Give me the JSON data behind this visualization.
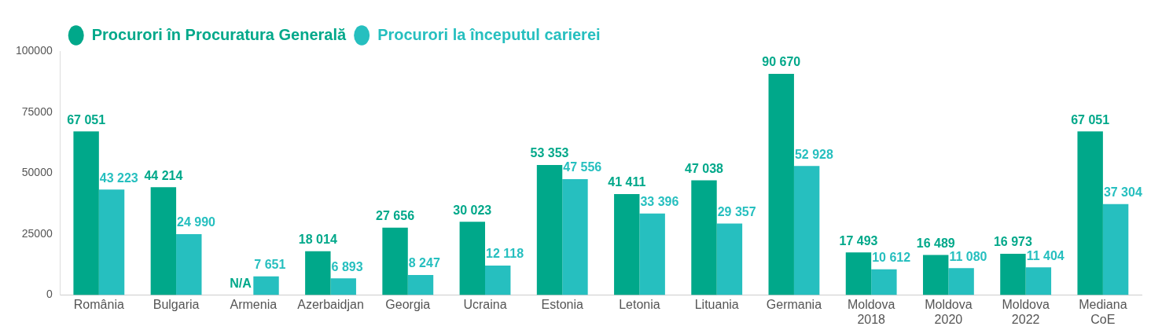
{
  "chart_data": {
    "type": "bar",
    "categories": [
      "România",
      "Bulgaria",
      "Armenia",
      "Azerbaidjan",
      "Georgia",
      "Ucraina",
      "Estonia",
      "Letonia",
      "Lituania",
      "Germania",
      "Moldova 2018",
      "Moldova 2020",
      "Moldova 2022",
      "Mediana CoE"
    ],
    "series": [
      {
        "name": "Procurori în Procuratura Generală",
        "color": "#00a88a",
        "values": [
          67051,
          44214,
          null,
          18014,
          27656,
          30023,
          53353,
          41411,
          47038,
          90670,
          17493,
          16489,
          16973,
          67051
        ],
        "value_labels": [
          "67 051",
          "44 214",
          "N/A",
          "18 014",
          "27 656",
          "30 023",
          "53 353",
          "41 411",
          "47 038",
          "90 670",
          "17 493",
          "16 489",
          "16 973",
          "67 051"
        ]
      },
      {
        "name": "Procurori la începutul carierei",
        "color": "#26bfbf",
        "values": [
          43223,
          24990,
          7651,
          6893,
          8247,
          12118,
          47556,
          33396,
          29357,
          52928,
          10612,
          11080,
          11404,
          37304
        ],
        "value_labels": [
          "43 223",
          "24 990",
          "7 651",
          "6 893",
          "8 247",
          "12 118",
          "47 556",
          "33 396",
          "29 357",
          "52 928",
          "10 612",
          "11 080",
          "11 404",
          "37 304"
        ]
      }
    ],
    "ylim": [
      0,
      100000
    ],
    "yticks": [
      0,
      25000,
      50000,
      75000,
      100000
    ],
    "grid": false,
    "legend": "top left",
    "marker": "circle"
  }
}
